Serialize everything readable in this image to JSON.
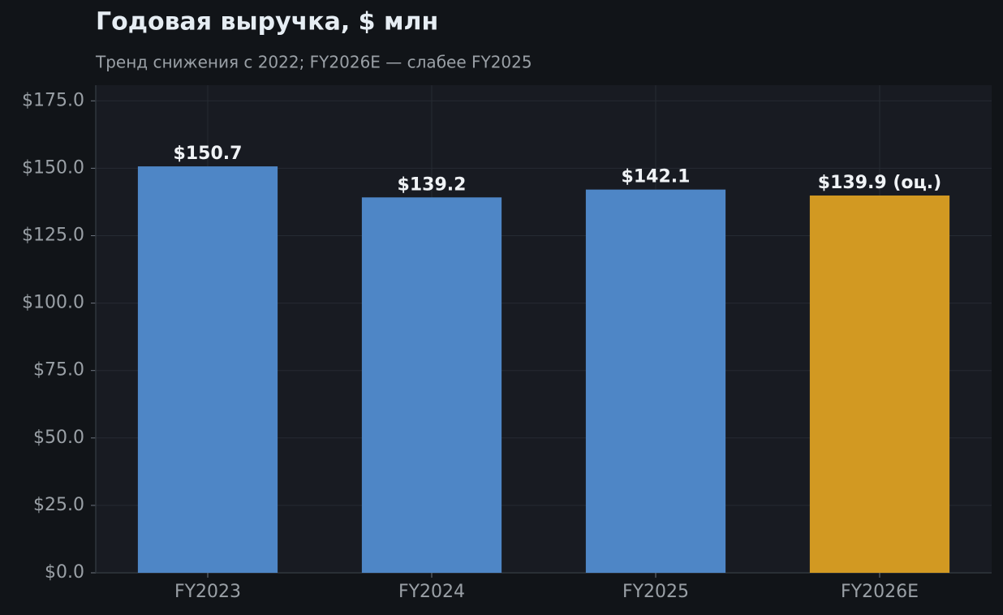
{
  "chart_data": {
    "type": "bar",
    "title": "Годовая выручка, $ млн",
    "subtitle": "Тренд снижения с 2022; FY2026E — слабее FY2025",
    "categories": [
      "FY2023",
      "FY2024",
      "FY2025",
      "FY2026E"
    ],
    "values": [
      150.7,
      139.2,
      142.1,
      139.9
    ],
    "value_labels": [
      "$150.7",
      "$139.2",
      "$142.1",
      "$139.9 (оц.)"
    ],
    "colors": [
      "#4e86c6",
      "#4e86c6",
      "#4e86c6",
      "#d29922"
    ],
    "ylim": [
      0,
      180.8
    ],
    "yticks": [
      {
        "value": 0,
        "label": "$0.0"
      },
      {
        "value": 25,
        "label": "$25.0"
      },
      {
        "value": 50,
        "label": "$50.0"
      },
      {
        "value": 75,
        "label": "$75.0"
      },
      {
        "value": 100,
        "label": "$100.0"
      },
      {
        "value": 125,
        "label": "$125.0"
      },
      {
        "value": 150,
        "label": "$150.0"
      },
      {
        "value": 175,
        "label": "$175.0"
      }
    ],
    "grid": true
  }
}
